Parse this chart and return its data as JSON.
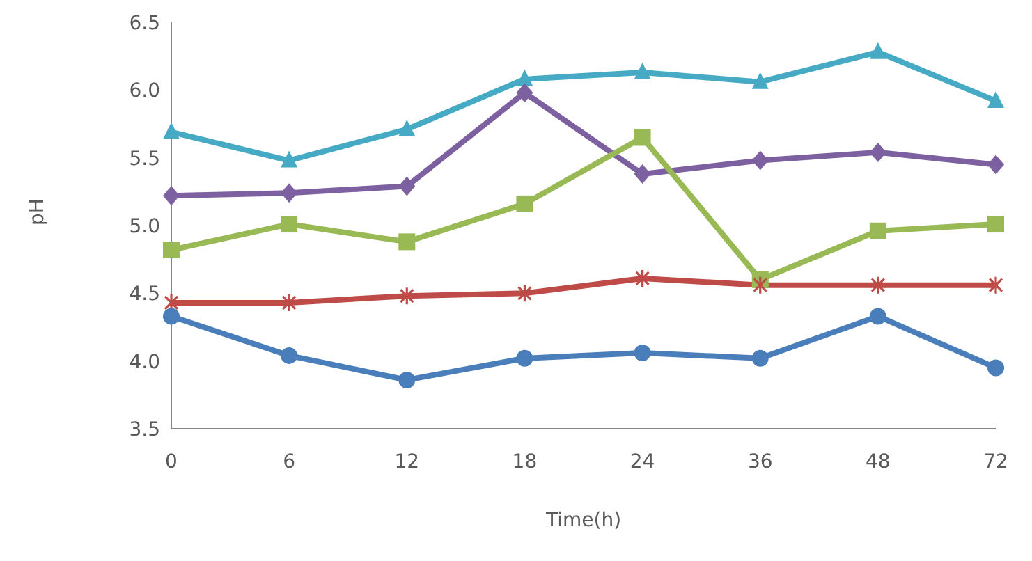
{
  "chart_data": {
    "type": "line",
    "xlabel": "Time(h)",
    "ylabel": "pH",
    "categories": [
      "0",
      "6",
      "12",
      "18",
      "24",
      "36",
      "48",
      "72"
    ],
    "series": [
      {
        "color": "#4a7ebb",
        "marker": "circle",
        "values": [
          4.33,
          4.04,
          3.86,
          4.02,
          4.06,
          4.02,
          4.33,
          3.95
        ]
      },
      {
        "color": "#be4b48",
        "marker": "cross",
        "values": [
          4.43,
          4.43,
          4.48,
          4.5,
          4.61,
          4.56,
          4.56,
          4.56
        ]
      },
      {
        "color": "#98b954",
        "marker": "square",
        "values": [
          4.82,
          5.01,
          4.88,
          5.16,
          5.65,
          4.6,
          4.96,
          5.01
        ]
      },
      {
        "color": "#7d60a0",
        "marker": "diamond",
        "values": [
          5.22,
          5.24,
          5.29,
          5.98,
          5.38,
          5.48,
          5.54,
          5.45
        ]
      },
      {
        "color": "#46aac5",
        "marker": "triangle",
        "values": [
          5.69,
          5.48,
          5.71,
          6.08,
          6.13,
          6.06,
          6.28,
          5.92
        ]
      }
    ],
    "ylim": [
      3.5,
      6.5
    ],
    "yticks": [
      3.5,
      {
        "value": 4,
        "label": "4.0"
      },
      4.5,
      {
        "value": 5,
        "label": "5.0"
      },
      5.5,
      {
        "value": 6,
        "label": "6.0"
      },
      6.5
    ],
    "grid": false,
    "legend": false,
    "line_style": "solid"
  }
}
